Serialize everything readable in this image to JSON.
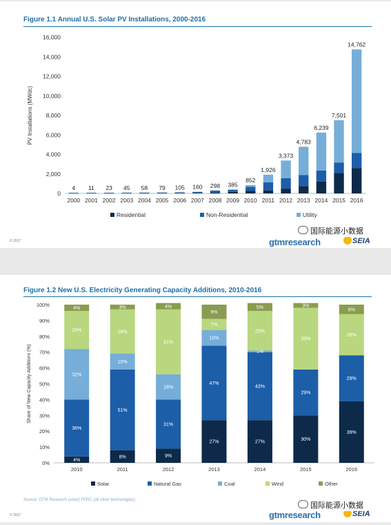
{
  "figure1": {
    "title": "Figure 1.1 Annual U.S. Solar PV Installations, 2000-2016",
    "copyright": "© 2017",
    "brand": "gtmresearch",
    "partner_logo": "SEIA",
    "watermark": "国际能源小数据"
  },
  "figure2": {
    "title": "Figure 1.2  New U.S. Electricity Generating Capacity Additions, 2010-2016",
    "source": "Source: GTM Research (solar) FERC (all other technologies)",
    "copyright": "© 2017",
    "brand": "gtmresearch",
    "partner_logo": "SEIA",
    "watermark": "国际能源小数据"
  },
  "chart_data": [
    {
      "type": "bar",
      "stacked": true,
      "title": "Figure 1.1 Annual U.S. Solar PV Installations, 2000-2016",
      "xlabel": "",
      "ylabel": "PV Installations (MWdc)",
      "ylim": [
        0,
        16000
      ],
      "yticks": [
        "0",
        "2,000",
        "4,000",
        "6,000",
        "8,000",
        "10,000",
        "12,000",
        "14,000",
        "16,000"
      ],
      "categories": [
        "2000",
        "2001",
        "2002",
        "2003",
        "2004",
        "2005",
        "2006",
        "2007",
        "2008",
        "2009",
        "2010",
        "2011",
        "2012",
        "2013",
        "2014",
        "2015",
        "2016"
      ],
      "totals_labels": [
        "4",
        "11",
        "23",
        "45",
        "58",
        "79",
        "105",
        "160",
        "298",
        "385",
        "852",
        "1,926",
        "3,373",
        "4,783",
        "6,239",
        "7,501",
        "14,762"
      ],
      "grid": false,
      "legend_position": "bottom",
      "series": [
        {
          "name": "Residential",
          "color": "#0d2a4a",
          "values": [
            2,
            5,
            10,
            20,
            25,
            30,
            40,
            55,
            80,
            150,
            250,
            310,
            490,
            760,
            1230,
            2100,
            2590
          ]
        },
        {
          "name": "Non-Residential",
          "color": "#1c5ea8",
          "values": [
            2,
            6,
            13,
            25,
            33,
            49,
            65,
            105,
            218,
            235,
            420,
            820,
            1080,
            1120,
            1110,
            1070,
            1560
          ]
        },
        {
          "name": "Utility",
          "color": "#76aed9",
          "values": [
            0,
            0,
            0,
            0,
            0,
            0,
            0,
            0,
            0,
            0,
            182,
            796,
            1803,
            2903,
            3899,
            4331,
            10612
          ]
        }
      ]
    },
    {
      "type": "bar",
      "stacked": true,
      "percent": true,
      "title": "Figure 1.2  New U.S. Electricity Generating Capacity Additions, 2010-2016",
      "xlabel": "",
      "ylabel": "Share of New Capacity Additions (%)",
      "ylim": [
        0,
        100
      ],
      "yticks": [
        "0%",
        "10%",
        "20%",
        "30%",
        "40%",
        "50%",
        "60%",
        "70%",
        "80%",
        "90%",
        "100%"
      ],
      "categories": [
        "2010",
        "2011",
        "2012",
        "2013",
        "2014",
        "2015",
        "2016"
      ],
      "grid": false,
      "legend_position": "bottom",
      "series": [
        {
          "name": "Solar",
          "color": "#0d2a4a",
          "values": [
            4,
            8,
            9,
            27,
            27,
            30,
            39
          ],
          "labels": [
            "4%",
            "8%",
            "9%",
            "27%",
            "27%",
            "30%",
            "39%"
          ]
        },
        {
          "name": "Natural Gas",
          "color": "#1c5ea8",
          "values": [
            36,
            51,
            31,
            47,
            43,
            29,
            29
          ],
          "labels": [
            "36%",
            "51%",
            "31%",
            "47%",
            "43%",
            "29%",
            "29%"
          ]
        },
        {
          "name": "Coal",
          "color": "#76aed9",
          "values": [
            32,
            10,
            16,
            10,
            1,
            0,
            0
          ],
          "labels": [
            "32%",
            "10%",
            "16%",
            "10%",
            "1%",
            "",
            ""
          ]
        },
        {
          "name": "Wind",
          "color": "#b9d77e",
          "values": [
            24,
            28,
            41,
            7,
            25,
            39,
            26
          ],
          "labels": [
            "24%",
            "28%",
            "41%",
            "7%",
            "25%",
            "39%",
            "26%"
          ]
        },
        {
          "name": "Other",
          "color": "#8a9c4f",
          "values": [
            4,
            3,
            4,
            9,
            5,
            3,
            6
          ],
          "labels": [
            "4%",
            "3%",
            "4%",
            "9%",
            "5%",
            "3%",
            "6%"
          ]
        }
      ]
    }
  ]
}
